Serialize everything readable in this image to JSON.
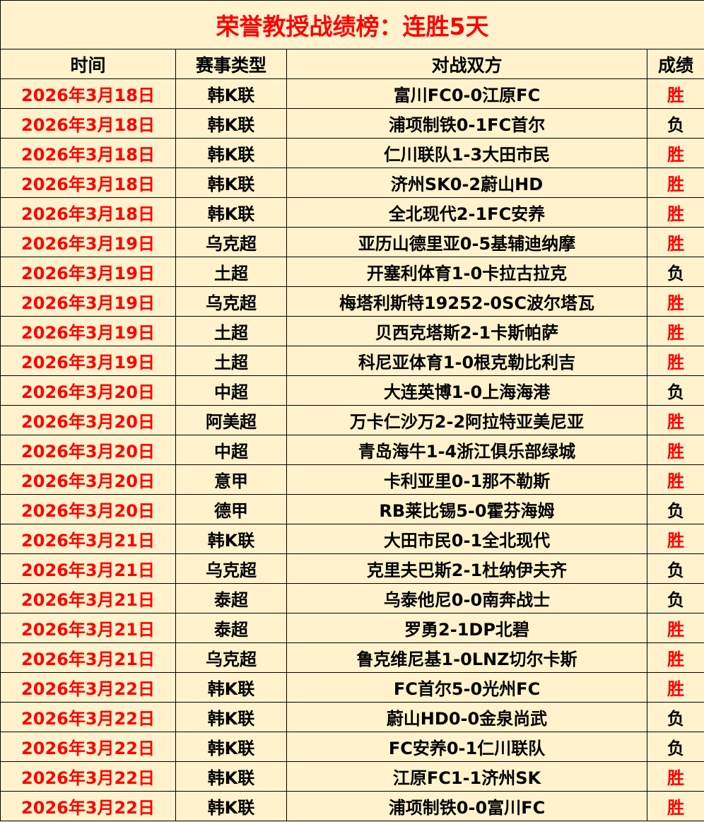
{
  "title": "荣誉教授战绩榜：连胜5天",
  "colors": {
    "background": "#FFF2CC",
    "accent": "#FF0000",
    "text": "#000000"
  },
  "headers": [
    "时间",
    "赛事类型",
    "对战双方",
    "成绩"
  ],
  "rows": [
    [
      "2026年3月18日",
      "韩K联",
      "富川FC0-0江原FC",
      "胜"
    ],
    [
      "2026年3月18日",
      "韩K联",
      "浦项制铁0-1FC首尔",
      "负"
    ],
    [
      "2026年3月18日",
      "韩K联",
      "仁川联队1-3大田市民",
      "胜"
    ],
    [
      "2026年3月18日",
      "韩K联",
      "济州SK0-2蔚山HD",
      "胜"
    ],
    [
      "2026年3月18日",
      "韩K联",
      "全北现代2-1FC安养",
      "胜"
    ],
    [
      "2026年3月19日",
      "乌克超",
      "亚历山德里亚0-5基辅迪纳摩",
      "胜"
    ],
    [
      "2026年3月19日",
      "土超",
      "开塞利体育1-0卡拉古拉克",
      "负"
    ],
    [
      "2026年3月19日",
      "乌克超",
      "梅塔利斯特19252-0SC波尔塔瓦",
      "胜"
    ],
    [
      "2026年3月19日",
      "土超",
      "贝西克塔斯2-1卡斯帕萨",
      "胜"
    ],
    [
      "2026年3月19日",
      "土超",
      "科尼亚体育1-0根克勒比利吉",
      "胜"
    ],
    [
      "2026年3月20日",
      "中超",
      "大连英博1-0上海海港",
      "负"
    ],
    [
      "2026年3月20日",
      "阿美超",
      "万卡仁沙万2-2阿拉特亚美尼亚",
      "胜"
    ],
    [
      "2026年3月20日",
      "中超",
      "青岛海牛1-4浙江俱乐部绿城",
      "胜"
    ],
    [
      "2026年3月20日",
      "意甲",
      "卡利亚里0-1那不勒斯",
      "胜"
    ],
    [
      "2026年3月20日",
      "德甲",
      "RB莱比锡5-0霍芬海姆",
      "负"
    ],
    [
      "2026年3月21日",
      "韩K联",
      "大田市民0-1全北现代",
      "胜"
    ],
    [
      "2026年3月21日",
      "乌克超",
      "克里夫巴斯2-1杜纳伊夫齐",
      "负"
    ],
    [
      "2026年3月21日",
      "泰超",
      "乌泰他尼0-0南奔战士",
      "负"
    ],
    [
      "2026年3月21日",
      "泰超",
      "罗勇2-1DP北碧",
      "胜"
    ],
    [
      "2026年3月21日",
      "乌克超",
      "鲁克维尼基1-0LNZ切尔卡斯",
      "胜"
    ],
    [
      "2026年3月22日",
      "韩K联",
      "FC首尔5-0光州FC",
      "胜"
    ],
    [
      "2026年3月22日",
      "韩K联",
      "蔚山HD0-0金泉尚武",
      "负"
    ],
    [
      "2026年3月22日",
      "韩K联",
      "FC安养0-1仁川联队",
      "负"
    ],
    [
      "2026年3月22日",
      "韩K联",
      "江原FC1-1济州SK",
      "胜"
    ],
    [
      "2026年3月22日",
      "韩K联",
      "浦项制铁0-0富川FC",
      "胜"
    ]
  ]
}
